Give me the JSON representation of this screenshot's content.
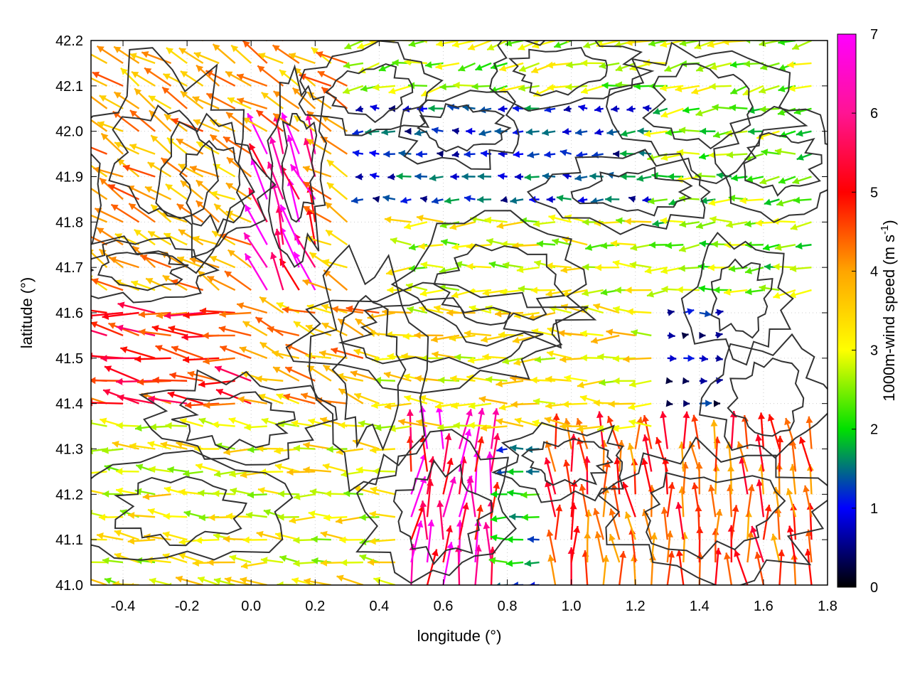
{
  "chart_data": {
    "type": "vector field",
    "xlabel": "longitude (°)",
    "ylabel": "latitude (°)",
    "colorbar_label_main": "1000m-wind speed (m s",
    "colorbar_label_sup": "-1",
    "colorbar_label_close": ")",
    "xlim": [
      -0.5,
      1.8
    ],
    "ylim": [
      41.0,
      42.2
    ],
    "xticks": [
      -0.4,
      -0.2,
      0.0,
      0.2,
      0.4,
      0.6,
      0.8,
      1.0,
      1.2,
      1.4,
      1.6,
      1.8
    ],
    "xtick_labels": [
      "-0.4",
      "-0.2",
      "0.0",
      "0.2",
      "0.4",
      "0.6",
      "0.8",
      "1.0",
      "1.2",
      "1.4",
      "1.6",
      "1.8"
    ],
    "yticks": [
      41.0,
      41.1,
      41.2,
      41.3,
      41.4,
      41.5,
      41.6,
      41.7,
      41.8,
      41.9,
      42.0,
      42.1,
      42.2
    ],
    "ytick_labels": [
      "41.0",
      "41.1",
      "41.2",
      "41.3",
      "41.4",
      "41.5",
      "41.6",
      "41.7",
      "41.8",
      "41.9",
      "42.0",
      "42.1",
      "42.2"
    ],
    "colorbar_range": [
      0,
      7
    ],
    "colorbar_ticks": [
      0,
      1,
      2,
      3,
      4,
      5,
      6,
      7
    ],
    "colorbar_tick_labels": [
      "0",
      "1",
      "2",
      "3",
      "4",
      "5",
      "6",
      "7"
    ],
    "colormap": [
      "#000000",
      "#0000ff",
      "#00e000",
      "#ffff00",
      "#ffa500",
      "#ff0000",
      "#ff00ff"
    ],
    "grid": true,
    "contour_color": "#333333",
    "wind_regions": [
      {
        "lon": [
          -0.5,
          0.05
        ],
        "lat": [
          41.35,
          41.62
        ],
        "dir_deg": 172,
        "speed": 5.6
      },
      {
        "lon": [
          -0.5,
          0.3
        ],
        "lat": [
          41.62,
          42.2
        ],
        "dir_deg": 150,
        "speed": 4.6
      },
      {
        "lon": [
          0.0,
          0.2
        ],
        "lat": [
          41.6,
          41.95
        ],
        "dir_deg": 110,
        "speed": 6.6
      },
      {
        "lon": [
          0.0,
          0.45
        ],
        "lat": [
          41.3,
          41.6
        ],
        "dir_deg": 160,
        "speed": 4.5
      },
      {
        "lon": [
          0.45,
          1.3
        ],
        "lat": [
          41.6,
          41.8
        ],
        "dir_deg": 180,
        "speed": 3.4
      },
      {
        "lon": [
          0.4,
          1.3
        ],
        "lat": [
          41.3,
          41.6
        ],
        "dir_deg": 178,
        "speed": 3.8
      },
      {
        "lon": [
          0.3,
          1.3
        ],
        "lat": [
          41.8,
          42.05
        ],
        "dir_deg": 180,
        "speed": 1.3
      },
      {
        "lon": [
          0.3,
          1.8
        ],
        "lat": [
          42.05,
          42.2
        ],
        "dir_deg": 190,
        "speed": 3.2
      },
      {
        "lon": [
          1.3,
          1.8
        ],
        "lat": [
          41.6,
          42.05
        ],
        "dir_deg": 185,
        "speed": 2.8
      },
      {
        "lon": [
          1.3,
          1.5
        ],
        "lat": [
          41.35,
          41.6
        ],
        "dir_deg": 0,
        "speed": 0.8
      },
      {
        "lon": [
          0.9,
          1.8
        ],
        "lat": [
          41.0,
          41.3
        ],
        "dir_deg": 95,
        "speed": 5.3
      },
      {
        "lon": [
          0.45,
          0.8
        ],
        "lat": [
          41.0,
          41.3
        ],
        "dir_deg": 85,
        "speed": 6.3
      },
      {
        "lon": [
          -0.5,
          0.45
        ],
        "lat": [
          41.0,
          41.35
        ],
        "dir_deg": 175,
        "speed": 3.6
      },
      {
        "lon": [
          0.8,
          0.95
        ],
        "lat": [
          41.0,
          41.3
        ],
        "dir_deg": 180,
        "speed": 2.0
      }
    ]
  }
}
